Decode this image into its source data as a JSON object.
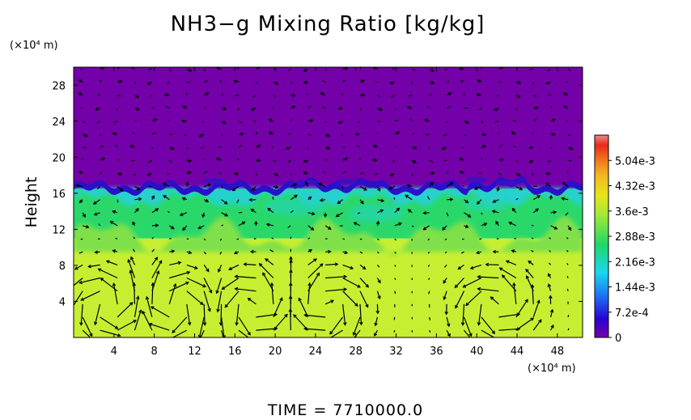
{
  "chart_data": {
    "type": "heatmap",
    "title": "NH3−g Mixing Ratio [kg/kg]",
    "ylabel": "Height",
    "x_unit": "(×10⁴ m)",
    "y_unit": "(×10⁴ m)",
    "xlim": [
      0,
      50.5
    ],
    "ylim": [
      0,
      30
    ],
    "x_ticks": [
      "4",
      "8",
      "12",
      "16",
      "20",
      "24",
      "28",
      "32",
      "36",
      "40",
      "44",
      "48"
    ],
    "y_ticks": [
      "4",
      "8",
      "12",
      "16",
      "20",
      "24",
      "28"
    ],
    "colorbar": {
      "range": [
        0,
        0.00576
      ],
      "tick_labels": [
        "0",
        "7.2e-4",
        "1.44e-3",
        "2.16e-3",
        "2.88e-3",
        "3.6e-3",
        "4.32e-3",
        "5.04e-3"
      ],
      "colors": [
        "#7a00a8",
        "#2a00d4",
        "#1d6cf2",
        "#19d6f0",
        "#1fd866",
        "#9fe83a",
        "#e6e61a",
        "#f2b81e",
        "#f0741e",
        "#e82a1a",
        "#f08a8a"
      ]
    },
    "layers": [
      {
        "name": "upper",
        "from": 16.5,
        "to": 30,
        "color": "#7300a8"
      },
      {
        "name": "interface",
        "from": 16.0,
        "to": 17.3,
        "color": "#2a10c8"
      },
      {
        "name": "mixing",
        "from": 11.0,
        "to": 16.5,
        "color": "#2ad86a"
      },
      {
        "name": "lower",
        "from": 0,
        "to": 11.0,
        "color": "#c6ef32"
      }
    ],
    "vortex_centers": [
      {
        "x": 3.5,
        "y": 3.5
      },
      {
        "x": 10,
        "y": 3.5
      },
      {
        "x": 18,
        "y": 3.5
      },
      {
        "x": 25,
        "y": 3.5
      },
      {
        "x": 42,
        "y": 3.5
      }
    ]
  },
  "footer": {
    "time_label": "TIME  =  7710000.0"
  },
  "colors": {
    "background": "#ffffff",
    "axis": "#000000",
    "arrow": "#000000"
  }
}
